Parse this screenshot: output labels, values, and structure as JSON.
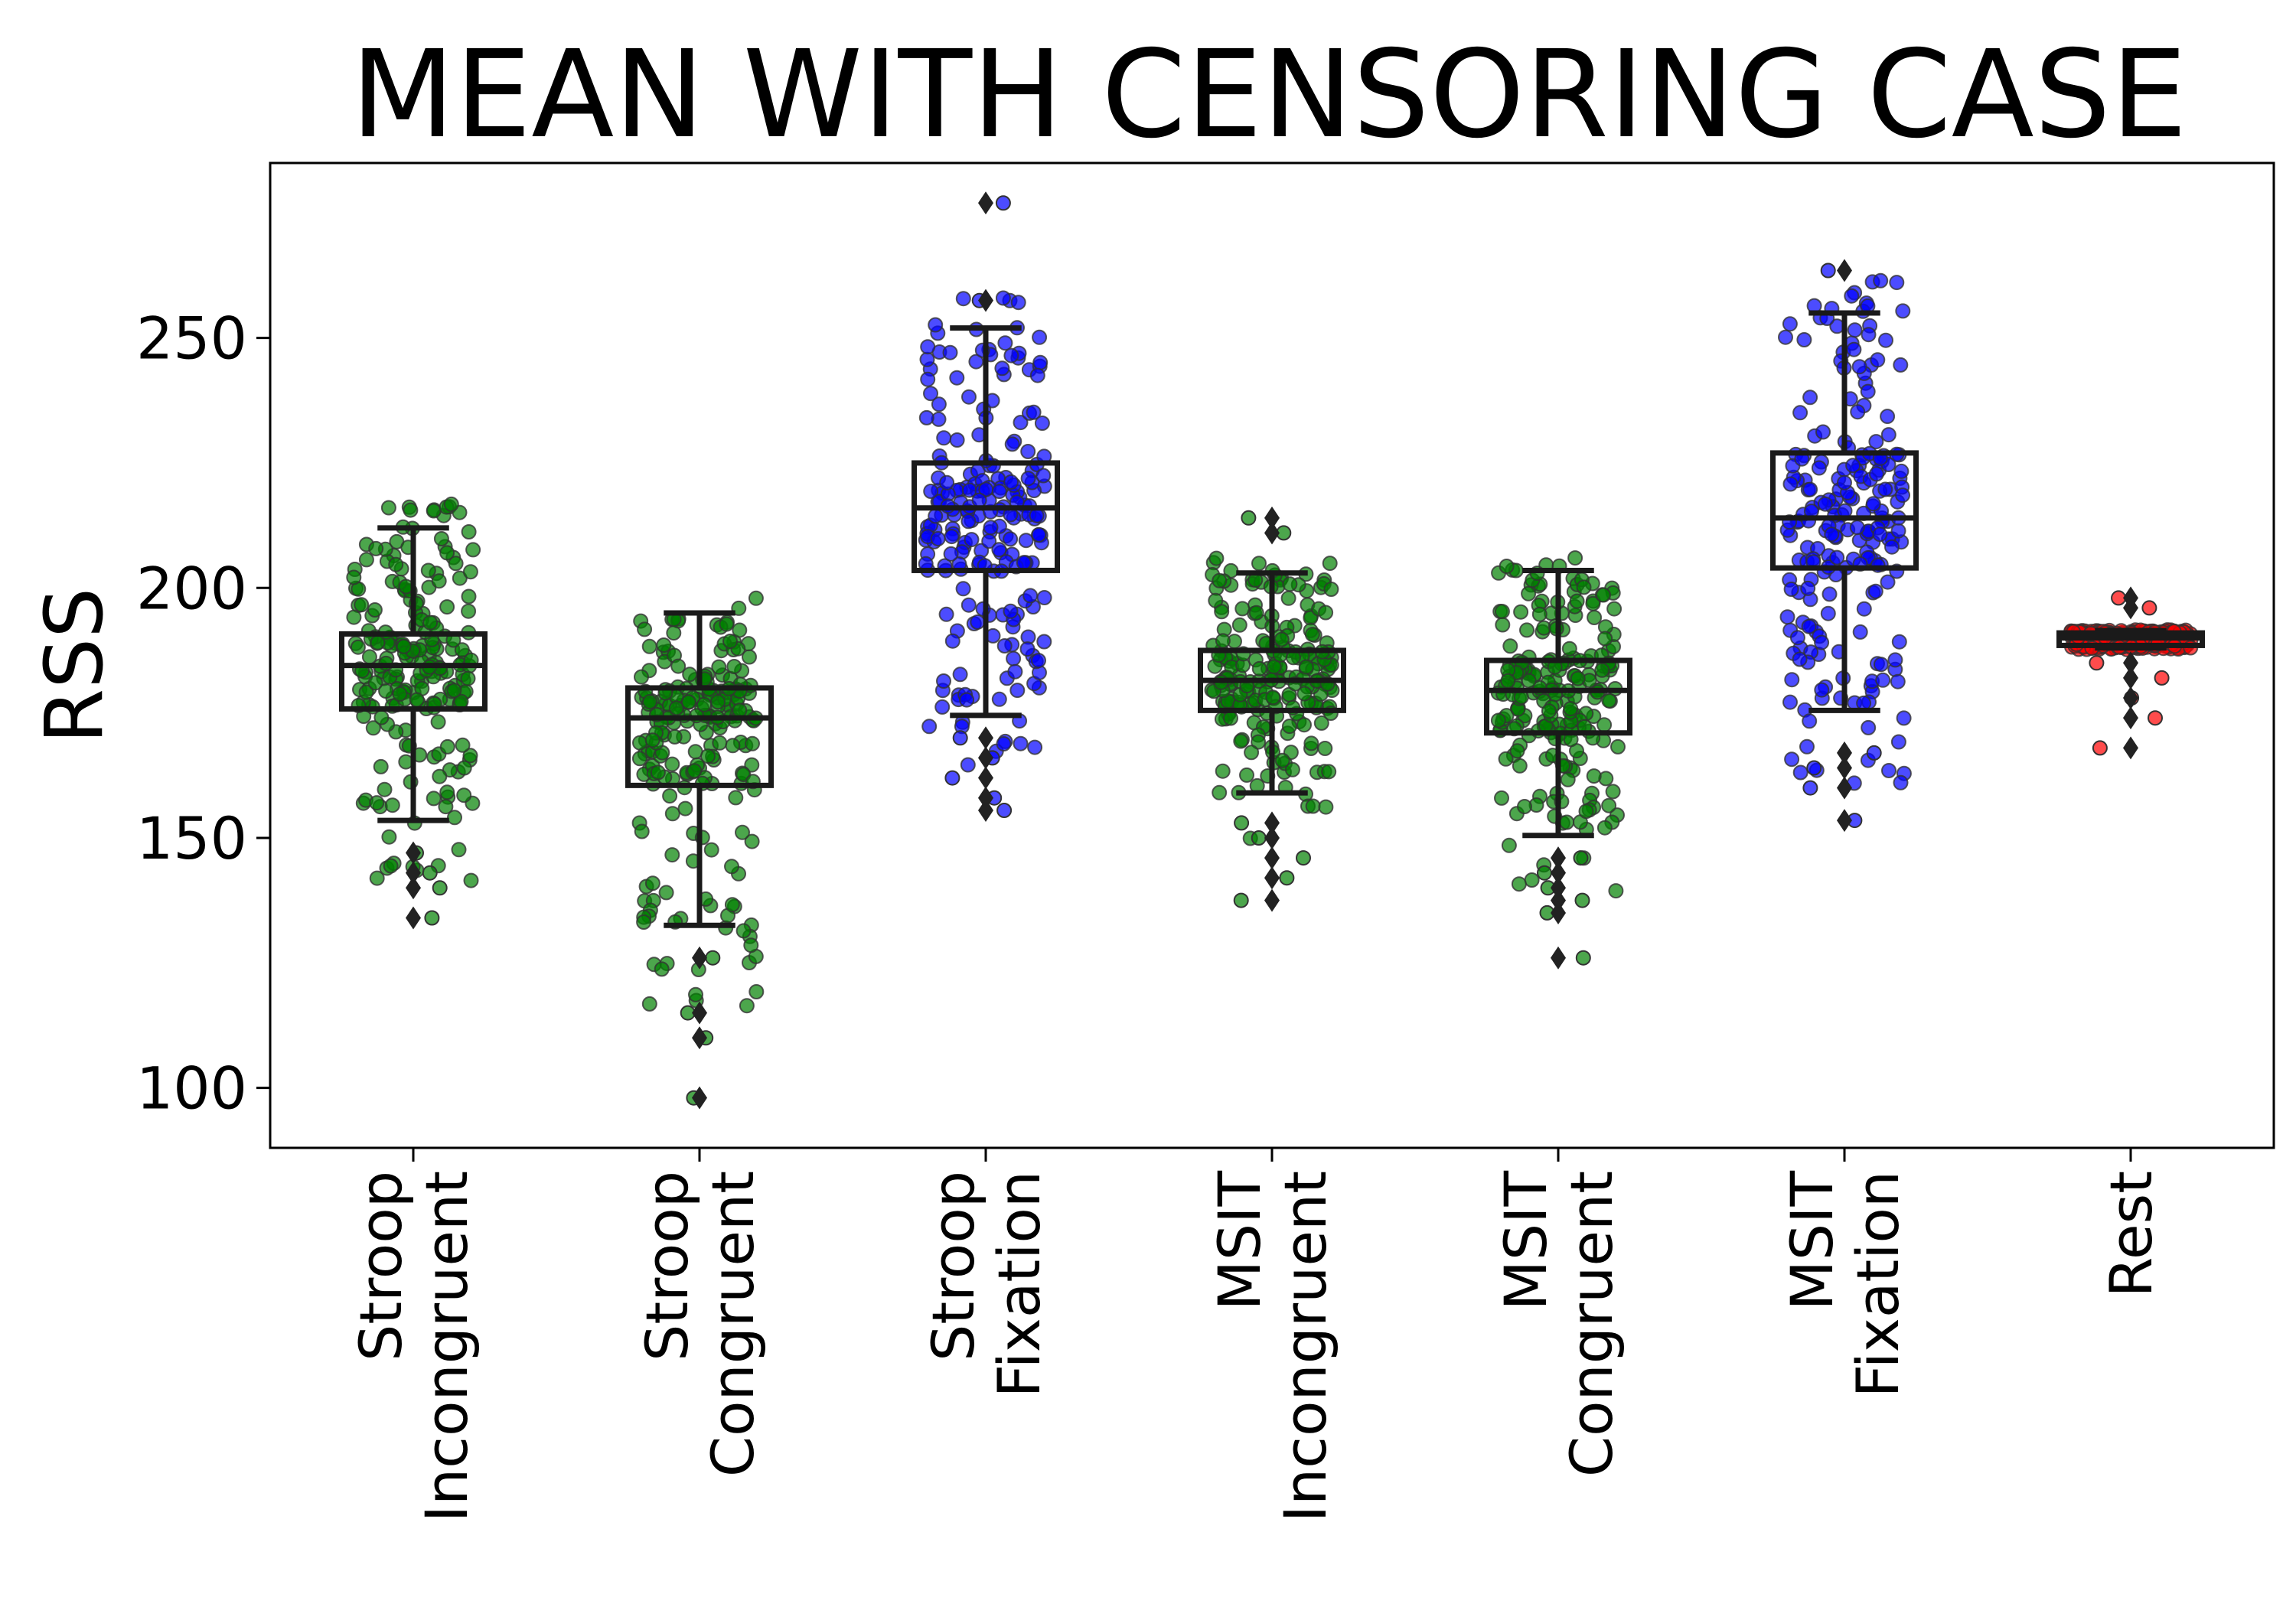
{
  "chart_data": {
    "type": "box",
    "title": "MEAN WITH CENSORING CASE",
    "xlabel": "",
    "ylabel": "RSS",
    "ylim": [
      88,
      285
    ],
    "yticks": [
      100,
      150,
      200,
      250
    ],
    "grid": false,
    "legend": "none",
    "categories": [
      [
        "Stroop",
        "Incongruent"
      ],
      [
        "Stroop",
        "Congruent"
      ],
      [
        "Stroop",
        "Fixation"
      ],
      [
        "MSIT",
        "Incongruent"
      ],
      [
        "MSIT",
        "Congruent"
      ],
      [
        "MSIT",
        "Fixation"
      ],
      [
        "Rest"
      ]
    ],
    "boxes": [
      {
        "whisker_low": 153.5,
        "q1": 175.8,
        "median": 184.5,
        "q3": 190.8,
        "whisker_high": 212,
        "color": "#008000",
        "outliers": [
          140,
          143,
          147,
          134
        ]
      },
      {
        "whisker_low": 132.5,
        "q1": 160.5,
        "median": 174,
        "q3": 180,
        "whisker_high": 195,
        "color": "#008000",
        "outliers": [
          126,
          115,
          110,
          98
        ]
      },
      {
        "whisker_low": 174.5,
        "q1": 203.5,
        "median": 216,
        "q3": 225,
        "whisker_high": 252,
        "color": "#0000ff",
        "outliers": [
          170,
          166,
          162,
          158,
          155.5,
          257.5,
          277
        ]
      },
      {
        "whisker_low": 159,
        "q1": 175.5,
        "median": 181.5,
        "q3": 187.5,
        "whisker_high": 203,
        "color": "#008000",
        "outliers": [
          153,
          150,
          146,
          142,
          137.5,
          211,
          214
        ]
      },
      {
        "whisker_low": 150.5,
        "q1": 171,
        "median": 179.5,
        "q3": 185.5,
        "whisker_high": 203.5,
        "color": "#008000",
        "outliers": [
          146,
          143,
          140,
          137.5,
          135,
          126
        ]
      },
      {
        "whisker_low": 175.5,
        "q1": 204,
        "median": 214,
        "q3": 227,
        "whisker_high": 255,
        "color": "#0000ff",
        "outliers": [
          167,
          164,
          160,
          153.5,
          263.5
        ]
      },
      {
        "whisker_low": 188,
        "q1": 188.5,
        "median": 190,
        "q3": 191,
        "whisker_high": 191.5,
        "color": "#ff0000",
        "outliers": [
          185,
          182,
          178,
          174,
          168,
          196,
          198
        ]
      }
    ],
    "point_counts": [
      220,
      220,
      220,
      220,
      220,
      220,
      220
    ],
    "marker_edge_color": "#333333",
    "marker_alpha": 0.7
  }
}
